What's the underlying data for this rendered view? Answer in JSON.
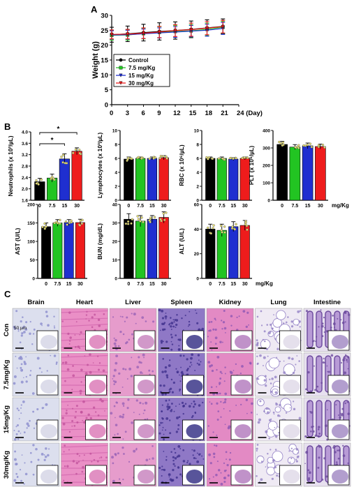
{
  "panels": {
    "a": "A",
    "b": "B",
    "c": "C"
  },
  "colors": {
    "control": "#000000",
    "dose_7_5": "#22c422",
    "dose_15": "#1f2fd0",
    "dose_30": "#ee1c1c",
    "he_pink": "#e58bc6",
    "he_purple": "#8e6cc4",
    "he_pale": "#e7e2f0"
  },
  "chart_data": [
    {
      "type": "line",
      "panel": "A",
      "title": "",
      "xlabel": "Day",
      "ylabel": "Weight (g)",
      "x": [
        0,
        3,
        6,
        9,
        12,
        15,
        18,
        21
      ],
      "xticks": [
        "0",
        "3",
        "6",
        "9",
        "12",
        "15",
        "18",
        "21",
        "24 (Day)"
      ],
      "xlim": [
        0,
        24
      ],
      "ylim": [
        0,
        30
      ],
      "yticks": [
        "0",
        "5",
        "10",
        "15",
        "20",
        "25",
        "30"
      ],
      "legend_position": "left-middle",
      "series": [
        {
          "name": "Control",
          "values": [
            23.5,
            23.8,
            24.2,
            24.6,
            24.9,
            25.3,
            25.8,
            26.3
          ],
          "error": [
            2.5,
            2.6,
            2.8,
            2.9,
            2.9,
            2.8,
            2.7,
            2.5
          ]
        },
        {
          "name": "7.5 mg/Kg",
          "values": [
            23.3,
            23.4,
            23.9,
            24.3,
            24.6,
            24.8,
            25.3,
            26.0
          ],
          "error": [
            1.6,
            1.7,
            1.8,
            1.9,
            2.0,
            2.1,
            2.1,
            2.0
          ]
        },
        {
          "name": "15 mg/Kg",
          "values": [
            23.4,
            23.5,
            23.8,
            24.1,
            24.4,
            24.7,
            25.0,
            25.6
          ],
          "error": [
            1.4,
            1.5,
            1.6,
            1.7,
            1.8,
            1.9,
            2.0,
            2.0
          ]
        },
        {
          "name": "30 mg/Kg",
          "values": [
            23.6,
            23.7,
            24.0,
            24.4,
            24.9,
            25.2,
            25.7,
            26.2
          ],
          "error": [
            1.5,
            1.6,
            1.8,
            1.9,
            2.0,
            2.2,
            2.2,
            2.1
          ]
        }
      ]
    },
    {
      "type": "bar",
      "panel": "B",
      "ylabel": "Neutrophils (x 10³/µL)",
      "categories": [
        "0",
        "7.5",
        "15",
        "30"
      ],
      "values": [
        2.25,
        2.38,
        3.05,
        3.32
      ],
      "error": [
        0.12,
        0.14,
        0.18,
        0.12
      ],
      "ylim": [
        1.6,
        4.0
      ],
      "yticks": [
        "1.6",
        "2.0",
        "2.4",
        "2.8",
        "3.2",
        "3.6",
        "4.0"
      ],
      "annotations": [
        "*",
        "*"
      ]
    },
    {
      "type": "bar",
      "panel": "B",
      "ylabel": "Lymphocytes (x 10³/µL)",
      "categories": [
        "0",
        "7.5",
        "15",
        "30"
      ],
      "values": [
        5.9,
        6.0,
        6.0,
        6.1
      ],
      "error": [
        0.3,
        0.2,
        0.2,
        0.3
      ],
      "ylim": [
        0,
        10
      ],
      "yticks": [
        "0",
        "2",
        "4",
        "6",
        "8",
        "10"
      ]
    },
    {
      "type": "bar",
      "panel": "B",
      "ylabel": "RBC (x 10⁶/µL)",
      "categories": [
        "0",
        "7.5",
        "15",
        "30"
      ],
      "values": [
        6.0,
        6.0,
        5.9,
        6.0
      ],
      "error": [
        0.2,
        0.2,
        0.2,
        0.2
      ],
      "ylim": [
        0,
        10
      ],
      "yticks": [
        "0",
        "2",
        "4",
        "6",
        "8",
        "10"
      ]
    },
    {
      "type": "bar",
      "panel": "B",
      "ylabel": "PLT (x 10⁶/µL)",
      "categories": [
        "0",
        "7.5",
        "15",
        "30"
      ],
      "values": [
        320,
        305,
        312,
        308
      ],
      "error": [
        18,
        14,
        16,
        14
      ],
      "ylim": [
        0,
        400
      ],
      "yticks": [
        "0",
        "100",
        "200",
        "300",
        "400"
      ],
      "xunit": "mg/Kg"
    },
    {
      "type": "bar",
      "panel": "B",
      "ylabel": "AST (U/L)",
      "categories": [
        "0",
        "7.5",
        "15",
        "30"
      ],
      "values": [
        140,
        150,
        151,
        151
      ],
      "error": [
        10,
        9,
        8,
        9
      ],
      "ylim": [
        0,
        200
      ],
      "yticks": [
        "0",
        "50",
        "100",
        "150",
        "200"
      ]
    },
    {
      "type": "bar",
      "panel": "B",
      "ylabel": "BUN (mg/dL)",
      "categories": [
        "0",
        "7.5",
        "15",
        "30"
      ],
      "values": [
        32,
        31,
        32,
        33
      ],
      "error": [
        3,
        3,
        2,
        3
      ],
      "ylim": [
        0,
        40
      ],
      "yticks": [
        "0",
        "10",
        "20",
        "30",
        "40"
      ]
    },
    {
      "type": "bar",
      "panel": "B",
      "ylabel": "ALT (U/L)",
      "categories": [
        "0",
        "7.5",
        "15",
        "30"
      ],
      "values": [
        40,
        39,
        42,
        43
      ],
      "error": [
        4,
        5,
        4,
        4
      ],
      "ylim": [
        0,
        60
      ],
      "yticks": [
        "0",
        "20",
        "40",
        "60"
      ],
      "xunit": "mg/Kg"
    }
  ],
  "histology": {
    "columns": [
      "Brain",
      "Heart",
      "Liver",
      "Spleen",
      "Kidney",
      "Lung",
      "Intestine"
    ],
    "rows": [
      "Con",
      "7.5mg/Kg",
      "15mg/Kg",
      "30mg/Kg"
    ],
    "scale_label": "50 µm"
  }
}
